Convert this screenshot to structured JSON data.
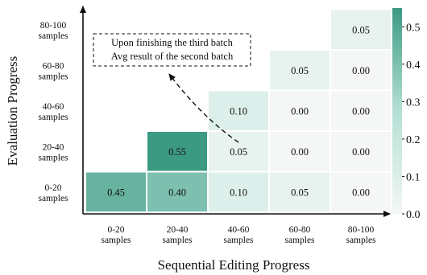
{
  "chart_data": {
    "type": "heatmap",
    "xlabel": "Sequential Editing Progress",
    "ylabel": "Evaluation Progress",
    "x_categories": [
      [
        "0-20",
        "samples"
      ],
      [
        "20-40",
        "samples"
      ],
      [
        "40-60",
        "samples"
      ],
      [
        "60-80",
        "samples"
      ],
      [
        "80-100",
        "samples"
      ]
    ],
    "y_categories": [
      [
        "0-20",
        "samples"
      ],
      [
        "20-40",
        "samples"
      ],
      [
        "40-60",
        "samples"
      ],
      [
        "60-80",
        "samples"
      ],
      [
        "80-100",
        "samples"
      ]
    ],
    "cells": [
      {
        "x": 0,
        "y": 0,
        "value": 0.45,
        "label": "0.45"
      },
      {
        "x": 1,
        "y": 0,
        "value": 0.4,
        "label": "0.40"
      },
      {
        "x": 2,
        "y": 0,
        "value": 0.1,
        "label": "0.10"
      },
      {
        "x": 3,
        "y": 0,
        "value": 0.05,
        "label": "0.05"
      },
      {
        "x": 4,
        "y": 0,
        "value": 0.0,
        "label": "0.00"
      },
      {
        "x": 1,
        "y": 1,
        "value": 0.55,
        "label": "0.55"
      },
      {
        "x": 2,
        "y": 1,
        "value": 0.05,
        "label": "0.05"
      },
      {
        "x": 3,
        "y": 1,
        "value": 0.0,
        "label": "0.00"
      },
      {
        "x": 4,
        "y": 1,
        "value": 0.0,
        "label": "0.00"
      },
      {
        "x": 2,
        "y": 2,
        "value": 0.1,
        "label": "0.10"
      },
      {
        "x": 3,
        "y": 2,
        "value": 0.0,
        "label": "0.00"
      },
      {
        "x": 4,
        "y": 2,
        "value": 0.0,
        "label": "0.00"
      },
      {
        "x": 3,
        "y": 3,
        "value": 0.05,
        "label": "0.05"
      },
      {
        "x": 4,
        "y": 3,
        "value": 0.0,
        "label": "0.00"
      },
      {
        "x": 4,
        "y": 4,
        "value": 0.05,
        "label": "0.05"
      }
    ],
    "colorbar": {
      "range": [
        0,
        0.55
      ],
      "ticks": [
        "0.0",
        "0.1",
        "0.2",
        "0.3",
        "0.4",
        "0.5"
      ],
      "color_low": "#f4f7f6",
      "color_high": "#3c9a83"
    },
    "annotation": {
      "lines": [
        "Upon finishing the third batch",
        "Avg result of the second batch"
      ]
    }
  }
}
